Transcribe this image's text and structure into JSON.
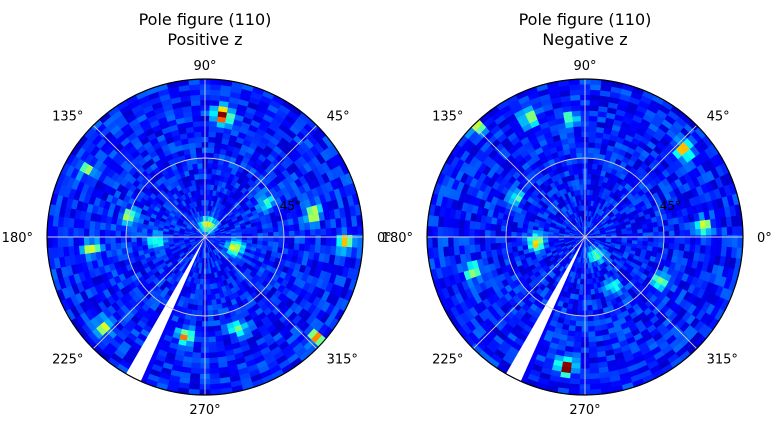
{
  "chart_data": [
    {
      "type": "heatmap",
      "subtype": "polar-pole-figure",
      "title": "Pole figure (110)",
      "subtitle": "Positive z",
      "colormap": "jet",
      "theta_tick_labels": [
        "0°",
        "45°",
        "90°",
        "135°",
        "180°",
        "225°",
        "270°",
        "315°"
      ],
      "r_tick_label": "45°",
      "r_max_deg": 90,
      "grid": true,
      "masked_wedge": {
        "theta_deg": [
          240,
          246
        ]
      },
      "hotspots": [
        {
          "theta_deg": 82,
          "r_deg": 70,
          "intensity": 1.0
        },
        {
          "theta_deg": 12,
          "r_deg": 63,
          "intensity": 0.6
        },
        {
          "theta_deg": 358,
          "r_deg": 80,
          "intensity": 0.55
        },
        {
          "theta_deg": 340,
          "r_deg": 18,
          "intensity": 0.55
        },
        {
          "theta_deg": 78,
          "r_deg": 7,
          "intensity": 0.5
        },
        {
          "theta_deg": 165,
          "r_deg": 45,
          "intensity": 0.45
        },
        {
          "theta_deg": 150,
          "r_deg": 78,
          "intensity": 0.4
        },
        {
          "theta_deg": 186,
          "r_deg": 65,
          "intensity": 0.5
        },
        {
          "theta_deg": 222,
          "r_deg": 77,
          "intensity": 0.45
        },
        {
          "theta_deg": 259,
          "r_deg": 58,
          "intensity": 0.6
        },
        {
          "theta_deg": 290,
          "r_deg": 55,
          "intensity": 0.4
        },
        {
          "theta_deg": 318,
          "r_deg": 85,
          "intensity": 0.55
        },
        {
          "theta_deg": 185,
          "r_deg": 28,
          "intensity": 0.35
        },
        {
          "theta_deg": 30,
          "r_deg": 40,
          "intensity": 0.3
        }
      ]
    },
    {
      "type": "heatmap",
      "subtype": "polar-pole-figure",
      "title": "Pole figure (110)",
      "subtitle": "Negative z",
      "colormap": "jet",
      "theta_tick_labels": [
        "0°",
        "45°",
        "90°",
        "135°",
        "180°",
        "225°",
        "270°",
        "315°"
      ],
      "r_tick_label": "45°",
      "r_max_deg": 90,
      "grid": true,
      "masked_wedge": {
        "theta_deg": [
          240,
          246
        ]
      },
      "hotspots": [
        {
          "theta_deg": 262,
          "r_deg": 75,
          "intensity": 1.0
        },
        {
          "theta_deg": 41,
          "r_deg": 75,
          "intensity": 0.65
        },
        {
          "theta_deg": 115,
          "r_deg": 75,
          "intensity": 0.5
        },
        {
          "theta_deg": 97,
          "r_deg": 68,
          "intensity": 0.4
        },
        {
          "theta_deg": 135,
          "r_deg": 88,
          "intensity": 0.45
        },
        {
          "theta_deg": 5,
          "r_deg": 68,
          "intensity": 0.5
        },
        {
          "theta_deg": 187,
          "r_deg": 28,
          "intensity": 0.55
        },
        {
          "theta_deg": 197,
          "r_deg": 67,
          "intensity": 0.5
        },
        {
          "theta_deg": 330,
          "r_deg": 50,
          "intensity": 0.45
        },
        {
          "theta_deg": 300,
          "r_deg": 33,
          "intensity": 0.3
        },
        {
          "theta_deg": 300,
          "r_deg": 12,
          "intensity": 0.35
        },
        {
          "theta_deg": 150,
          "r_deg": 45,
          "intensity": 0.3
        }
      ]
    }
  ]
}
